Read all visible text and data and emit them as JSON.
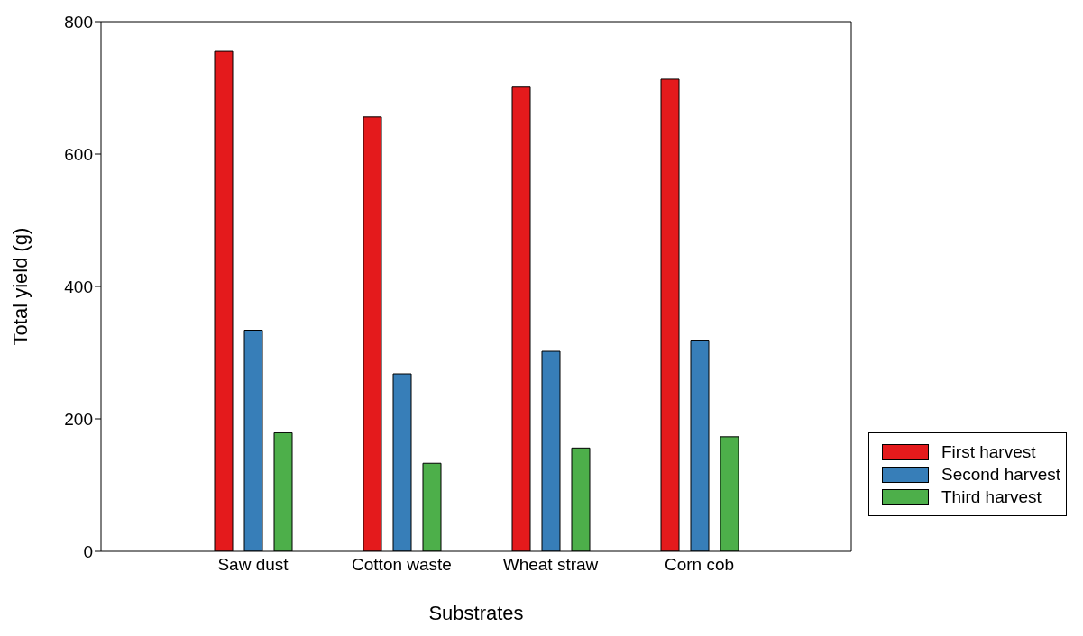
{
  "chart_data": {
    "type": "bar",
    "xlabel": "Substrates",
    "ylabel": "Total yield (g)",
    "categories": [
      "Saw dust",
      "Cotton waste",
      "Wheat straw",
      "Corn cob"
    ],
    "series": [
      {
        "name": "First harvest",
        "color": "#e41a1c",
        "values": [
          755,
          656,
          701,
          713
        ]
      },
      {
        "name": "Second harvest",
        "color": "#377eb8",
        "values": [
          334,
          268,
          302,
          319
        ]
      },
      {
        "name": "Third harvest",
        "color": "#4daf4a",
        "values": [
          179,
          133,
          156,
          173
        ]
      }
    ],
    "ylim": [
      0,
      800
    ],
    "yticks": [
      0,
      200,
      400,
      600,
      800
    ],
    "grid": false,
    "legend": "right"
  }
}
